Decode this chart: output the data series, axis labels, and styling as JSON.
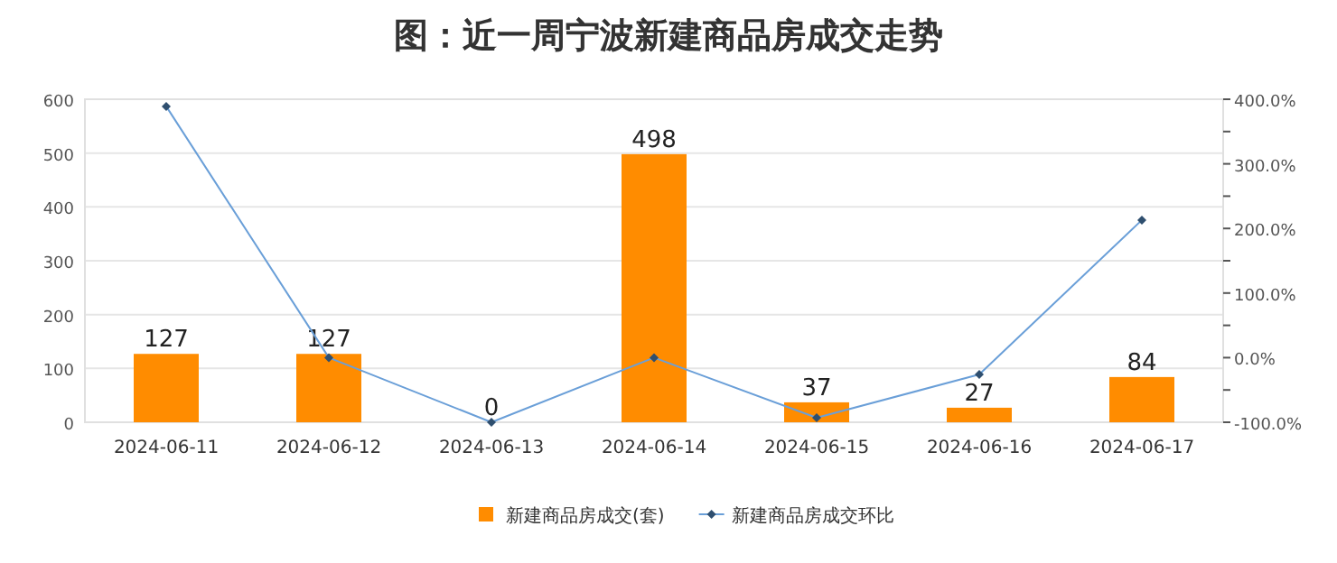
{
  "chart_data": {
    "type": "bar",
    "title": "图：近一周宁波新建商品房成交走势",
    "categories": [
      "2024-06-11",
      "2024-06-12",
      "2024-06-13",
      "2024-06-14",
      "2024-06-15",
      "2024-06-16",
      "2024-06-17"
    ],
    "series": [
      {
        "name": "新建商品房成交(套)",
        "color": "#ff8c00",
        "values": [
          127,
          127,
          0,
          498,
          37,
          27,
          84
        ],
        "value_labels": [
          "127",
          "127",
          "0",
          "498",
          "37",
          "27",
          "84"
        ]
      },
      {
        "name": "新建商品房成交环比",
        "type": "line",
        "axis": "y2",
        "color": "#6a9fd8",
        "marker": "diamond",
        "values": [
          389,
          0,
          -100,
          0,
          -93,
          -26,
          213
        ]
      }
    ],
    "ylim": [
      0,
      600
    ],
    "yticks": [
      0,
      100,
      200,
      300,
      400,
      500,
      600
    ],
    "y2lim": [
      -100,
      400
    ],
    "y2ticks": [
      {
        "value": -100,
        "label": "-100.0%"
      },
      {
        "value": -50,
        "label": null
      },
      {
        "value": 0,
        "label": "0.0%"
      },
      {
        "value": 50,
        "label": null
      },
      {
        "value": 100,
        "label": "100.0%"
      },
      {
        "value": 150,
        "label": null
      },
      {
        "value": 200,
        "label": "200.0%"
      },
      {
        "value": 250,
        "label": null
      },
      {
        "value": 300,
        "label": "300.0%"
      },
      {
        "value": 350,
        "label": null
      },
      {
        "value": 400,
        "label": "400.0%"
      }
    ],
    "grid": "y",
    "legend": "bottom"
  }
}
